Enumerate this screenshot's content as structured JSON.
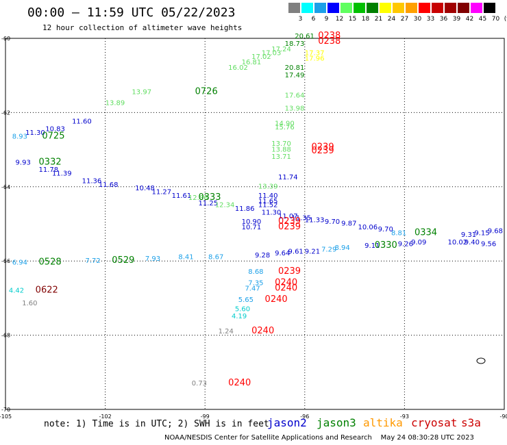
{
  "title": "00:00 – 11:59 UTC 05/22/2023",
  "subtitle": "12 hour collection of altimeter wave heights",
  "legend": {
    "labels": [
      "3",
      "6",
      "9",
      "12",
      "15",
      "18",
      "21",
      "24",
      "27",
      "30",
      "33",
      "36",
      "39",
      "42",
      "45",
      "70",
      "(ft)"
    ],
    "colors": [
      "#808080",
      "#00ffff",
      "#1ca0e8",
      "#0000ff",
      "#60ff60",
      "#00c000",
      "#008000",
      "#ffff00",
      "#ffc800",
      "#ffa000",
      "#ff0000",
      "#c80000",
      "#a00000",
      "#800000",
      "#ff00ff",
      "#000000"
    ]
  },
  "axes": {
    "lat_ticks": [
      "-60",
      "-62",
      "-64",
      "-66",
      "-68",
      "-70"
    ],
    "lon_ticks": [
      "-105",
      "-102",
      "-99",
      "-96",
      "-93",
      "-90"
    ]
  },
  "note": "note: 1) Time is in UTC; 2) SWH is in feet",
  "satellites": [
    {
      "name": "jason2",
      "color": "#0000cc"
    },
    {
      "name": "jason3",
      "color": "#008000"
    },
    {
      "name": "altika",
      "color": "#ff9900"
    },
    {
      "name": "cryosat",
      "color": "#cc0000"
    },
    {
      "name": "s3a",
      "color": "#cc0000"
    }
  ],
  "credit": "NOAA/NESDIS Center for Satellite Applications and Research    May 24 08:30:28 UTC 2023",
  "map_labels": [
    {
      "t": "0238",
      "lon": -95.6,
      "lat": -60.0,
      "c": "#ff0000",
      "s": 13
    },
    {
      "t": "0238",
      "lon": -95.6,
      "lat": -60.15,
      "c": "#ff0000",
      "s": 13
    },
    {
      "t": "20.61",
      "lon": -96.3,
      "lat": -60.0,
      "c": "#008000",
      "s": 10
    },
    {
      "t": "18.73",
      "lon": -96.6,
      "lat": -60.2,
      "c": "#008000",
      "s": 10
    },
    {
      "t": "17.24",
      "lon": -97.0,
      "lat": -60.35,
      "c": "#60dd60",
      "s": 10
    },
    {
      "t": "17.03",
      "lon": -97.3,
      "lat": -60.45,
      "c": "#60dd60",
      "s": 10
    },
    {
      "t": "17.02",
      "lon": -97.6,
      "lat": -60.55,
      "c": "#60dd60",
      "s": 10
    },
    {
      "t": "16.81",
      "lon": -97.9,
      "lat": -60.7,
      "c": "#60dd60",
      "s": 10
    },
    {
      "t": "16.02",
      "lon": -98.3,
      "lat": -60.85,
      "c": "#60dd60",
      "s": 10
    },
    {
      "t": "0726",
      "lon": -99.3,
      "lat": -61.5,
      "c": "#008000",
      "s": 13
    },
    {
      "t": "13.97",
      "lon": -101.2,
      "lat": -61.5,
      "c": "#60dd60",
      "s": 10
    },
    {
      "t": "13.89",
      "lon": -102.0,
      "lat": -61.8,
      "c": "#60dd60",
      "s": 10
    },
    {
      "t": "11.60",
      "lon": -103.0,
      "lat": -62.3,
      "c": "#0000cc",
      "s": 10
    },
    {
      "t": "10.83",
      "lon": -103.8,
      "lat": -62.5,
      "c": "#0000cc",
      "s": 10
    },
    {
      "t": "11.30",
      "lon": -104.4,
      "lat": -62.6,
      "c": "#0000cc",
      "s": 10
    },
    {
      "t": "8.93",
      "lon": -104.8,
      "lat": -62.7,
      "c": "#1ca0e8",
      "s": 10
    },
    {
      "t": "0725",
      "lon": -103.9,
      "lat": -62.7,
      "c": "#008000",
      "s": 13
    },
    {
      "t": "9.93",
      "lon": -104.7,
      "lat": -63.4,
      "c": "#0000cc",
      "s": 10
    },
    {
      "t": "0332",
      "lon": -104.0,
      "lat": -63.4,
      "c": "#008000",
      "s": 13
    },
    {
      "t": "11.78",
      "lon": -104.0,
      "lat": -63.6,
      "c": "#0000cc",
      "s": 10
    },
    {
      "t": "11.39",
      "lon": -103.6,
      "lat": -63.7,
      "c": "#0000cc",
      "s": 10
    },
    {
      "t": "11.36",
      "lon": -102.7,
      "lat": -63.9,
      "c": "#0000cc",
      "s": 10
    },
    {
      "t": "11.68",
      "lon": -102.2,
      "lat": -64.0,
      "c": "#0000cc",
      "s": 10
    },
    {
      "t": "10.48",
      "lon": -101.1,
      "lat": -64.1,
      "c": "#0000cc",
      "s": 10
    },
    {
      "t": "11.27",
      "lon": -100.6,
      "lat": -64.2,
      "c": "#0000cc",
      "s": 10
    },
    {
      "t": "11.61",
      "lon": -100.0,
      "lat": -64.3,
      "c": "#0000cc",
      "s": 10
    },
    {
      "t": "12.86",
      "lon": -99.5,
      "lat": -64.35,
      "c": "#60dd60",
      "s": 10
    },
    {
      "t": "0333",
      "lon": -99.2,
      "lat": -64.35,
      "c": "#008000",
      "s": 13
    },
    {
      "t": "11.25",
      "lon": -99.2,
      "lat": -64.5,
      "c": "#0000cc",
      "s": 10
    },
    {
      "t": "12.34",
      "lon": -98.7,
      "lat": -64.55,
      "c": "#60dd60",
      "s": 10
    },
    {
      "t": "11.86",
      "lon": -98.1,
      "lat": -64.65,
      "c": "#0000cc",
      "s": 10
    },
    {
      "t": "11.40",
      "lon": -97.4,
      "lat": -64.3,
      "c": "#0000cc",
      "s": 10
    },
    {
      "t": "11.65",
      "lon": -97.4,
      "lat": -64.45,
      "c": "#0000cc",
      "s": 10
    },
    {
      "t": "11.52",
      "lon": -97.4,
      "lat": -64.55,
      "c": "#0000cc",
      "s": 10
    },
    {
      "t": "11.30",
      "lon": -97.3,
      "lat": -64.75,
      "c": "#0000cc",
      "s": 10
    },
    {
      "t": "11.07",
      "lon": -96.8,
      "lat": -64.85,
      "c": "#0000cc",
      "s": 10
    },
    {
      "t": "11.35",
      "lon": -96.4,
      "lat": -64.9,
      "c": "#0000cc",
      "s": 10
    },
    {
      "t": "11.33",
      "lon": -96.0,
      "lat": -64.95,
      "c": "#0000cc",
      "s": 10
    },
    {
      "t": "9.70",
      "lon": -95.4,
      "lat": -65.0,
      "c": "#0000cc",
      "s": 10
    },
    {
      "t": "9.87",
      "lon": -94.9,
      "lat": -65.05,
      "c": "#0000cc",
      "s": 10
    },
    {
      "t": "10.06",
      "lon": -94.4,
      "lat": -65.15,
      "c": "#0000cc",
      "s": 10
    },
    {
      "t": "9.70",
      "lon": -93.8,
      "lat": -65.2,
      "c": "#0000cc",
      "s": 10
    },
    {
      "t": "8.81",
      "lon": -93.4,
      "lat": -65.3,
      "c": "#1ca0e8",
      "s": 10
    },
    {
      "t": "0334",
      "lon": -92.7,
      "lat": -65.3,
      "c": "#008000",
      "s": 13
    },
    {
      "t": "9.31",
      "lon": -91.3,
      "lat": -65.35,
      "c": "#0000cc",
      "s": 10
    },
    {
      "t": "9.15",
      "lon": -90.9,
      "lat": -65.3,
      "c": "#0000cc",
      "s": 10
    },
    {
      "t": "9.68",
      "lon": -90.5,
      "lat": -65.25,
      "c": "#0000cc",
      "s": 10
    },
    {
      "t": "10.02",
      "lon": -91.7,
      "lat": -65.55,
      "c": "#0000cc",
      "s": 10
    },
    {
      "t": "9.40",
      "lon": -91.2,
      "lat": -65.55,
      "c": "#0000cc",
      "s": 10
    },
    {
      "t": "9.56",
      "lon": -90.7,
      "lat": -65.6,
      "c": "#0000cc",
      "s": 10
    },
    {
      "t": "9.26",
      "lon": -93.2,
      "lat": -65.6,
      "c": "#0000cc",
      "s": 10
    },
    {
      "t": "9.09",
      "lon": -92.8,
      "lat": -65.55,
      "c": "#0000cc",
      "s": 10
    },
    {
      "t": "9.11",
      "lon": -94.2,
      "lat": -65.65,
      "c": "#0000cc",
      "s": 10
    },
    {
      "t": "0330",
      "lon": -93.9,
      "lat": -65.65,
      "c": "#008000",
      "s": 13
    },
    {
      "t": "8.94",
      "lon": -95.1,
      "lat": -65.7,
      "c": "#1ca0e8",
      "s": 10
    },
    {
      "t": "7.29",
      "lon": -95.5,
      "lat": -65.75,
      "c": "#1ca0e8",
      "s": 10
    },
    {
      "t": "9.21",
      "lon": -96.0,
      "lat": -65.8,
      "c": "#0000cc",
      "s": 10
    },
    {
      "t": "9.61",
      "lon": -96.5,
      "lat": -65.8,
      "c": "#0000cc",
      "s": 10
    },
    {
      "t": "9.64",
      "lon": -96.9,
      "lat": -65.85,
      "c": "#0000cc",
      "s": 10
    },
    {
      "t": "9.28",
      "lon": -97.5,
      "lat": -65.9,
      "c": "#0000cc",
      "s": 10
    },
    {
      "t": "10.90",
      "lon": -97.9,
      "lat": -65.0,
      "c": "#0000cc",
      "s": 10
    },
    {
      "t": "10.71",
      "lon": -97.9,
      "lat": -65.15,
      "c": "#0000cc",
      "s": 10
    },
    {
      "t": "0239",
      "lon": -96.8,
      "lat": -65.0,
      "c": "#ff0000",
      "s": 13
    },
    {
      "t": "0239",
      "lon": -96.8,
      "lat": -65.15,
      "c": "#ff0000",
      "s": 13
    },
    {
      "t": "6.94",
      "lon": -104.8,
      "lat": -66.1,
      "c": "#1ca0e8",
      "s": 10
    },
    {
      "t": "0528",
      "lon": -104.0,
      "lat": -66.1,
      "c": "#008000",
      "s": 13
    },
    {
      "t": "7.72",
      "lon": -102.6,
      "lat": -66.05,
      "c": "#1ca0e8",
      "s": 10
    },
    {
      "t": "0529",
      "lon": -101.8,
      "lat": -66.05,
      "c": "#008000",
      "s": 13
    },
    {
      "t": "7.93",
      "lon": -100.8,
      "lat": -66.0,
      "c": "#1ca0e8",
      "s": 10
    },
    {
      "t": "8.41",
      "lon": -99.8,
      "lat": -65.95,
      "c": "#1ca0e8",
      "s": 10
    },
    {
      "t": "8.67",
      "lon": -98.9,
      "lat": -65.95,
      "c": "#1ca0e8",
      "s": 10
    },
    {
      "t": "8.68",
      "lon": -97.7,
      "lat": -66.35,
      "c": "#1ca0e8",
      "s": 10
    },
    {
      "t": "0239",
      "lon": -96.8,
      "lat": -66.35,
      "c": "#ff0000",
      "s": 13
    },
    {
      "t": "7.35",
      "lon": -97.7,
      "lat": -66.65,
      "c": "#1ca0e8",
      "s": 10
    },
    {
      "t": "7.47",
      "lon": -97.8,
      "lat": -66.8,
      "c": "#1ca0e8",
      "s": 10
    },
    {
      "t": "0240",
      "lon": -96.9,
      "lat": -66.65,
      "c": "#ff0000",
      "s": 13
    },
    {
      "t": "0240",
      "lon": -96.9,
      "lat": -66.8,
      "c": "#ff0000",
      "s": 13
    },
    {
      "t": "5.65",
      "lon": -98.0,
      "lat": -67.1,
      "c": "#1ca0e8",
      "s": 10
    },
    {
      "t": "0240",
      "lon": -97.2,
      "lat": -67.1,
      "c": "#ff0000",
      "s": 13
    },
    {
      "t": "5.60",
      "lon": -98.1,
      "lat": -67.35,
      "c": "#00cccc",
      "s": 10
    },
    {
      "t": "4.19",
      "lon": -98.2,
      "lat": -67.55,
      "c": "#00cccc",
      "s": 10
    },
    {
      "t": "1.24",
      "lon": -98.6,
      "lat": -67.95,
      "c": "#808080",
      "s": 10
    },
    {
      "t": "0240",
      "lon": -97.6,
      "lat": -67.95,
      "c": "#ff0000",
      "s": 13
    },
    {
      "t": "4.42",
      "lon": -104.9,
      "lat": -66.85,
      "c": "#00cccc",
      "s": 10
    },
    {
      "t": "0622",
      "lon": -104.1,
      "lat": -66.85,
      "c": "#800000",
      "s": 13
    },
    {
      "t": "1.60",
      "lon": -104.5,
      "lat": -67.2,
      "c": "#808080",
      "s": 10
    },
    {
      "t": "0.73",
      "lon": -99.4,
      "lat": -69.35,
      "c": "#808080",
      "s": 10
    },
    {
      "t": "0240",
      "lon": -98.3,
      "lat": -69.35,
      "c": "#ff0000",
      "s": 13
    },
    {
      "t": "0239",
      "lon": -95.8,
      "lat": -63.0,
      "c": "#ff0000",
      "s": 13
    },
    {
      "t": "0239",
      "lon": -95.8,
      "lat": -63.1,
      "c": "#ff0000",
      "s": 13
    },
    {
      "t": "17.64",
      "lon": -96.6,
      "lat": -61.6,
      "c": "#60dd60",
      "s": 10
    },
    {
      "t": "13.98",
      "lon": -96.6,
      "lat": -61.95,
      "c": "#60dd60",
      "s": 10
    },
    {
      "t": "14.90",
      "lon": -96.9,
      "lat": -62.35,
      "c": "#60dd60",
      "s": 10
    },
    {
      "t": "15.76",
      "lon": -96.9,
      "lat": -62.45,
      "c": "#60dd60",
      "s": 10
    },
    {
      "t": "13.70",
      "lon": -97.0,
      "lat": -62.9,
      "c": "#60dd60",
      "s": 10
    },
    {
      "t": "13.88",
      "lon": -97.0,
      "lat": -63.05,
      "c": "#60dd60",
      "s": 10
    },
    {
      "t": "13.71",
      "lon": -97.0,
      "lat": -63.25,
      "c": "#60dd60",
      "s": 10
    },
    {
      "t": "11.74",
      "lon": -96.8,
      "lat": -63.8,
      "c": "#0000cc",
      "s": 10
    },
    {
      "t": "13.39",
      "lon": -97.4,
      "lat": -64.05,
      "c": "#60dd60",
      "s": 10
    },
    {
      "t": "20.81",
      "lon": -96.6,
      "lat": -60.85,
      "c": "#008000",
      "s": 10
    },
    {
      "t": "17.49",
      "lon": -96.6,
      "lat": -61.05,
      "c": "#008000",
      "s": 10
    },
    {
      "t": "17.37",
      "lon": -96.0,
      "lat": -60.45,
      "c": "#ffff00",
      "s": 10
    },
    {
      "t": "17.96",
      "lon": -96.0,
      "lat": -60.6,
      "c": "#ffff00",
      "s": 10
    }
  ]
}
